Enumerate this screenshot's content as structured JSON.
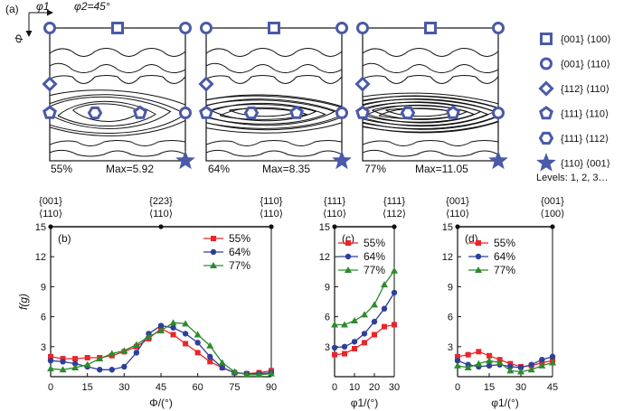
{
  "colors": {
    "s55": "#e8262a",
    "s64": "#2e3f9a",
    "s77": "#2d8a2d",
    "marker": "#4a5aa8",
    "contour": "#111111"
  },
  "top": {
    "panel_label": "(a)",
    "phi1_axis": "φ1",
    "phi2_label": "φ2=45°",
    "Phi_axis": "Φ",
    "levels": "Levels: 1, 2, 3…",
    "maps": [
      {
        "percent": "55%",
        "max": "Max=5.92"
      },
      {
        "percent": "64%",
        "max": "Max=8.35"
      },
      {
        "percent": "77%",
        "max": "Max=11.05"
      }
    ],
    "legend": [
      {
        "icon": "square-icon",
        "label": "{001} ⟨100⟩"
      },
      {
        "icon": "circle-icon",
        "label": "{001} ⟨110⟩"
      },
      {
        "icon": "diamond-icon",
        "label": "{112} ⟨110⟩"
      },
      {
        "icon": "pentagon-icon",
        "label": "{111} ⟨110⟩"
      },
      {
        "icon": "hexagon-icon",
        "label": "{111} ⟨112⟩"
      },
      {
        "icon": "star-icon",
        "label": "{110} ⟨001⟩"
      }
    ]
  },
  "chart_data": [
    {
      "type": "line",
      "panel": "(b)",
      "xlabel": "Φ/(°)",
      "ylabel": "f(g)",
      "xlim": [
        0,
        90
      ],
      "ylim": [
        0,
        15
      ],
      "xticks": [
        0,
        15,
        30,
        45,
        60,
        75,
        90
      ],
      "yticks": [
        3,
        6,
        9,
        12,
        15
      ],
      "top_labels": [
        {
          "x": 0,
          "line1": "{001}",
          "line2": "⟨110⟩"
        },
        {
          "x": 45,
          "line1": "{223}",
          "line2": "⟨110⟩"
        },
        {
          "x": 90,
          "line1": "{110}",
          "line2": "⟨110⟩"
        }
      ],
      "series": [
        {
          "name": "55%",
          "marker": "square",
          "x": [
            0,
            5,
            10,
            15,
            20,
            25,
            30,
            35,
            40,
            45,
            50,
            55,
            60,
            65,
            70,
            75,
            80,
            85,
            90
          ],
          "values": [
            2.0,
            1.8,
            1.8,
            1.9,
            1.9,
            2.1,
            2.5,
            3.0,
            3.8,
            4.8,
            4.2,
            3.3,
            2.4,
            1.5,
            0.9,
            0.4,
            0.3,
            0.4,
            0.6
          ]
        },
        {
          "name": "64%",
          "marker": "circle",
          "x": [
            0,
            5,
            10,
            15,
            20,
            25,
            30,
            35,
            40,
            45,
            50,
            55,
            60,
            65,
            70,
            75,
            80,
            85,
            90
          ],
          "values": [
            1.6,
            1.5,
            1.3,
            1.0,
            0.7,
            0.7,
            1.0,
            2.4,
            4.3,
            5.1,
            4.9,
            4.3,
            3.4,
            2.0,
            0.9,
            0.4,
            0.3,
            0.3,
            0.4
          ]
        },
        {
          "name": "77%",
          "marker": "triangle",
          "x": [
            0,
            5,
            10,
            15,
            20,
            25,
            30,
            35,
            40,
            45,
            50,
            55,
            60,
            65,
            70,
            75,
            80,
            85,
            90
          ],
          "values": [
            0.8,
            0.7,
            0.9,
            1.2,
            1.8,
            2.3,
            2.6,
            3.2,
            4.0,
            4.6,
            5.4,
            5.3,
            4.2,
            3.1,
            1.4,
            0.5,
            0.2,
            0.2,
            0.3
          ]
        }
      ]
    },
    {
      "type": "line",
      "panel": "(c)",
      "xlabel": "φ1/(°)",
      "ylabel": "",
      "xlim": [
        0,
        30
      ],
      "ylim": [
        0,
        15
      ],
      "xticks": [
        0,
        10,
        20,
        30
      ],
      "yticks": [
        3,
        6,
        9,
        12,
        15
      ],
      "top_labels": [
        {
          "x": 0,
          "line1": "{111}",
          "line2": "⟨110⟩"
        },
        {
          "x": 30,
          "line1": "{111}",
          "line2": "⟨112⟩"
        }
      ],
      "series": [
        {
          "name": "55%",
          "marker": "square",
          "x": [
            0,
            5,
            10,
            15,
            20,
            25,
            30
          ],
          "values": [
            2.2,
            2.3,
            2.8,
            3.4,
            4.2,
            5.0,
            5.2
          ]
        },
        {
          "name": "64%",
          "marker": "circle",
          "x": [
            0,
            5,
            10,
            15,
            20,
            25,
            30
          ],
          "values": [
            2.9,
            3.0,
            3.5,
            4.3,
            5.5,
            6.8,
            8.4
          ]
        },
        {
          "name": "77%",
          "marker": "triangle",
          "x": [
            0,
            5,
            10,
            15,
            20,
            25,
            30
          ],
          "values": [
            5.2,
            5.2,
            5.6,
            6.2,
            7.2,
            9.2,
            10.6
          ]
        }
      ]
    },
    {
      "type": "line",
      "panel": "(d)",
      "xlabel": "φ1/(°)",
      "ylabel": "",
      "xlim": [
        0,
        45
      ],
      "ylim": [
        0,
        15
      ],
      "xticks": [
        0,
        15,
        30,
        45
      ],
      "yticks": [
        3,
        6,
        9,
        12,
        15
      ],
      "top_labels": [
        {
          "x": 0,
          "line1": "{001}",
          "line2": "⟨110⟩"
        },
        {
          "x": 45,
          "line1": "{001}",
          "line2": "⟨100⟩"
        }
      ],
      "series": [
        {
          "name": "55%",
          "marker": "square",
          "x": [
            0,
            5,
            10,
            15,
            20,
            25,
            30,
            35,
            40,
            45
          ],
          "values": [
            2.0,
            2.2,
            2.5,
            2.1,
            1.7,
            1.3,
            1.0,
            1.1,
            1.4,
            1.6
          ]
        },
        {
          "name": "64%",
          "marker": "circle",
          "x": [
            0,
            5,
            10,
            15,
            20,
            25,
            30,
            35,
            40,
            45
          ],
          "values": [
            1.6,
            1.2,
            1.0,
            1.1,
            1.2,
            1.0,
            0.9,
            1.2,
            1.7,
            2.0
          ]
        },
        {
          "name": "77%",
          "marker": "triangle",
          "x": [
            0,
            5,
            10,
            15,
            20,
            25,
            30,
            35,
            40,
            45
          ],
          "values": [
            1.1,
            0.9,
            1.3,
            1.6,
            1.4,
            0.6,
            0.5,
            0.7,
            1.1,
            1.4
          ]
        }
      ]
    }
  ]
}
